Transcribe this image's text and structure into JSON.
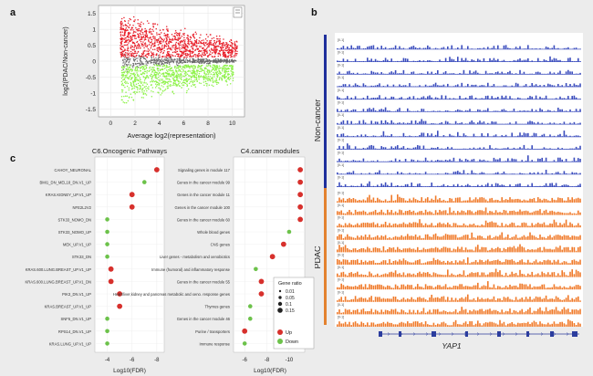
{
  "panels": {
    "a": "a",
    "b": "b",
    "c": "c"
  },
  "panel_a": {
    "chart_data": {
      "type": "scatter",
      "xlabel": "Average log2(representation)",
      "ylabel": "log2(PDAC/Non-cancer)",
      "xlim": [
        -1,
        11
      ],
      "ylim": [
        -1.75,
        1.75
      ],
      "xticks": [
        "0",
        "2",
        "4",
        "6",
        "8",
        "10"
      ],
      "yticks": [
        "1.5",
        "1",
        "0.5",
        "0",
        "-0.5",
        "-1",
        "-1.5"
      ],
      "series": [
        {
          "color": "#e8202b"
        },
        {
          "color": "#6a6a6a"
        },
        {
          "color": "#8ef24a"
        }
      ],
      "grid": true
    }
  },
  "panel_c": {
    "left": {
      "chart_data": {
        "type": "scatter",
        "title": "C6.Oncogenic Pathways",
        "xlabel": "Log10(FDR)",
        "xticks": [
          "-4",
          "-6",
          "-8"
        ],
        "categories": [
          "CAHOY_NEURONAL",
          "BMI1_DN_MEL18_DN.V1_UP",
          "KRAS.KIDNEY_UP.V1_UP",
          "NFE2L2V2",
          "STK33_NOMO_DN",
          "STK33_NOMO_UP",
          "MEK_UP.V1_UP",
          "STK33_DN",
          "KRAS.600.LUNG.BREAST_UP.V1_UP",
          "KRAS.600.LUNG.BREAST_UP.V1_DN",
          "PIK3_DN.V1_UP",
          "KRAS.BREAST_UP.V1_UP",
          "SNF5_DN.V1_UP",
          "RPS14_DN.V1_UP",
          "KRAS.LUNG_UP.V1_UP"
        ],
        "x": [
          -8,
          -7,
          -6,
          -6,
          -4,
          -4,
          -4,
          -4,
          -4.3,
          -4.3,
          -5,
          -5,
          -4,
          -4,
          -4
        ],
        "direction": [
          "Up",
          "Down",
          "Up",
          "Up",
          "Down",
          "Down",
          "Down",
          "Down",
          "Up",
          "Up",
          "Up",
          "Up",
          "Down",
          "Down",
          "Down"
        ]
      }
    },
    "right": {
      "chart_data": {
        "type": "scatter",
        "title": "C4.cancer modules",
        "xlabel": "Log10(FDR)",
        "xticks": [
          "-6",
          "-8",
          "-10"
        ],
        "categories": [
          "Signaling genes in module 117",
          "Genes in the cancer module 99",
          "Genes in the cancer module 11",
          "Genes in the cancer module 100",
          "Genes in the cancer module 60",
          "Whole blood genes",
          "CNS genes",
          "Liver genes - metabolism and xenobiotics",
          "Immune (humoral) and inflammatory response",
          "Genes in the cancer module 55",
          "Heart/liver,kidney and pancreas metabolic and xeno. response genes",
          "Thymus genes",
          "Genes in the cancer module 46",
          "Purine / transporters",
          "Immune response"
        ],
        "x": [
          -11,
          -11,
          -11,
          -11,
          -11,
          -10,
          -9.5,
          -8.5,
          -7,
          -7.5,
          -7.5,
          -6.5,
          -6.5,
          -6,
          -6
        ],
        "direction": [
          "Up",
          "Up",
          "Up",
          "Up",
          "Up",
          "Down",
          "Up",
          "Up",
          "Down",
          "Up",
          "Up",
          "Down",
          "Down",
          "Up",
          "Down"
        ]
      }
    },
    "legend": {
      "size_title": "Gene ratio",
      "sizes": [
        "0.01",
        "0.05",
        "0.1",
        "0.15"
      ],
      "color_entries": [
        "Up",
        "Down"
      ],
      "up_color": "#d7302c",
      "down_color": "#6cc24a"
    }
  },
  "panel_b": {
    "track_groups": [
      {
        "label": "Non-cancer",
        "color": "#1f2f9c",
        "bar_color": "#3b4dbd"
      },
      {
        "label": "PDAC",
        "color": "#e3822f",
        "bar_color": "#f07a2a"
      }
    ],
    "scale_label": "[0-1]",
    "gene_name": "YAP1"
  }
}
